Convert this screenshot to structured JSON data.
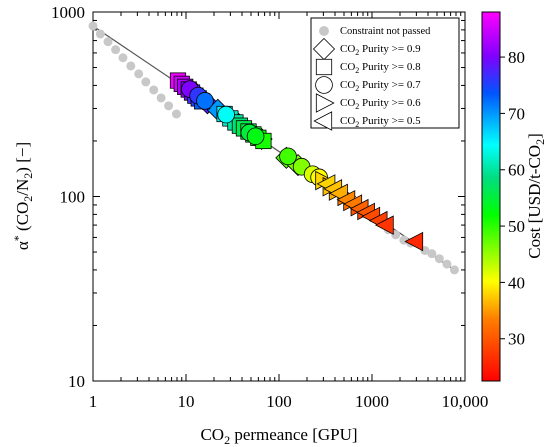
{
  "chart_data": {
    "type": "scatter",
    "title": "",
    "xscale": "log",
    "yscale": "log",
    "xlim": [
      1,
      10000
    ],
    "ylim": [
      10,
      1000
    ],
    "xlabel": {
      "pre": "CO",
      "sub": "2",
      "post": " permeance [GPU]"
    },
    "ylabel": {
      "alpha": "α",
      "star": "*",
      "mid": " (CO",
      "sub1": "2",
      "slash": "/N",
      "sub2": "2",
      "post": ") [−]"
    },
    "xticks": [
      "1",
      "10",
      "100",
      "1000",
      "10,000"
    ],
    "yticks": [
      "10",
      "100",
      "1000"
    ],
    "colorbar": {
      "label": {
        "pre": "Cost [USD/t-CO",
        "sub": "2",
        "post": "]"
      },
      "range": [
        22.5,
        88
      ],
      "ticks": [
        "30",
        "40",
        "50",
        "60",
        "70",
        "80"
      ],
      "tick_values": [
        30,
        40,
        50,
        60,
        70,
        80
      ]
    },
    "legend": {
      "position": "top-right",
      "entries": [
        {
          "marker": "circle-small",
          "color": "#c8c8c8",
          "label": "Constraint not passed"
        },
        {
          "marker": "diamond",
          "pre": "CO",
          "sub": "2",
          "post": " Purity >= 0.9"
        },
        {
          "marker": "square",
          "pre": "CO",
          "sub": "2",
          "post": " Purity >= 0.8"
        },
        {
          "marker": "circle",
          "pre": "CO",
          "sub": "2",
          "post": " Purity >= 0.7"
        },
        {
          "marker": "triangle-right",
          "pre": "CO",
          "sub": "2",
          "post": " Purity >= 0.6"
        },
        {
          "marker": "triangle-left",
          "pre": "CO",
          "sub": "2",
          "post": " Purity >= 0.5"
        }
      ]
    },
    "series": [
      {
        "name": "Constraint not passed",
        "marker": "circle-small",
        "color": "#c8c8c8",
        "x": [
          1.0,
          1.2,
          1.45,
          1.75,
          2.1,
          2.55,
          3.1,
          3.7,
          4.5,
          5.4,
          6.5,
          7.9,
          17,
          20,
          24,
          1500,
          1800,
          2200,
          2600,
          3700,
          4400,
          5300,
          6400,
          7700
        ],
        "y": [
          840,
          760,
          690,
          625,
          565,
          510,
          462,
          418,
          378,
          342,
          310,
          280,
          320,
          300,
          280,
          66,
          62,
          58,
          56,
          51,
          49,
          46,
          43,
          40
        ]
      },
      {
        "name": "CO2 Purity >= 0.9",
        "marker": "diamond",
        "x": [
          13,
          15,
          17,
          22,
          30,
          36,
          44,
          55,
          65,
          120,
          160
        ],
        "y": [
          360,
          338,
          320,
          295,
          265,
          250,
          232,
          215,
          205,
          162,
          148
        ],
        "cost": [
          85,
          82,
          78,
          70,
          62,
          60,
          56,
          54,
          52,
          48,
          46
        ]
      },
      {
        "name": "CO2 Purity >= 0.8",
        "marker": "square",
        "x": [
          8.2,
          9.0,
          9.8,
          10.7,
          11.6,
          12.6,
          13.7,
          14.9,
          26,
          30,
          34,
          38,
          42,
          47,
          53,
          60,
          68
        ],
        "y": [
          425,
          408,
          393,
          380,
          366,
          352,
          340,
          328,
          280,
          265,
          252,
          242,
          234,
          225,
          217,
          208,
          200
        ],
        "cost": [
          87,
          85,
          83,
          81,
          79,
          77,
          75,
          73,
          65,
          62,
          60,
          58,
          56,
          55,
          54,
          52,
          51
        ]
      },
      {
        "name": "CO2 Purity >= 0.7",
        "marker": "circle",
        "x": [
          11,
          13.5,
          16,
          27,
          48,
          56,
          125,
          175,
          230,
          270
        ],
        "y": [
          382,
          352,
          330,
          278,
          222,
          212,
          165,
          145,
          132,
          127
        ],
        "cost": [
          80,
          76,
          72,
          64,
          55,
          53,
          49,
          46,
          42,
          40
        ]
      },
      {
        "name": "CO2 Purity >= 0.6",
        "marker": "triangle-right",
        "x": [
          300,
          360,
          420,
          520,
          600,
          720,
          850
        ],
        "y": [
          122,
          113,
          107,
          100,
          94,
          88,
          84
        ],
        "cost": [
          38,
          37,
          36,
          33,
          32,
          30,
          29
        ]
      },
      {
        "name": "CO2 Purity >= 0.5",
        "marker": "triangle-left",
        "x": [
          330,
          390,
          450,
          540,
          640,
          750,
          880,
          1000,
          1200,
          1400,
          2900
        ],
        "y": [
          117,
          110,
          104,
          96,
          91,
          86,
          82,
          78,
          74,
          70,
          57
        ],
        "cost": [
          38,
          37,
          36,
          34,
          33,
          31,
          30,
          29,
          28,
          27,
          26
        ]
      }
    ]
  }
}
